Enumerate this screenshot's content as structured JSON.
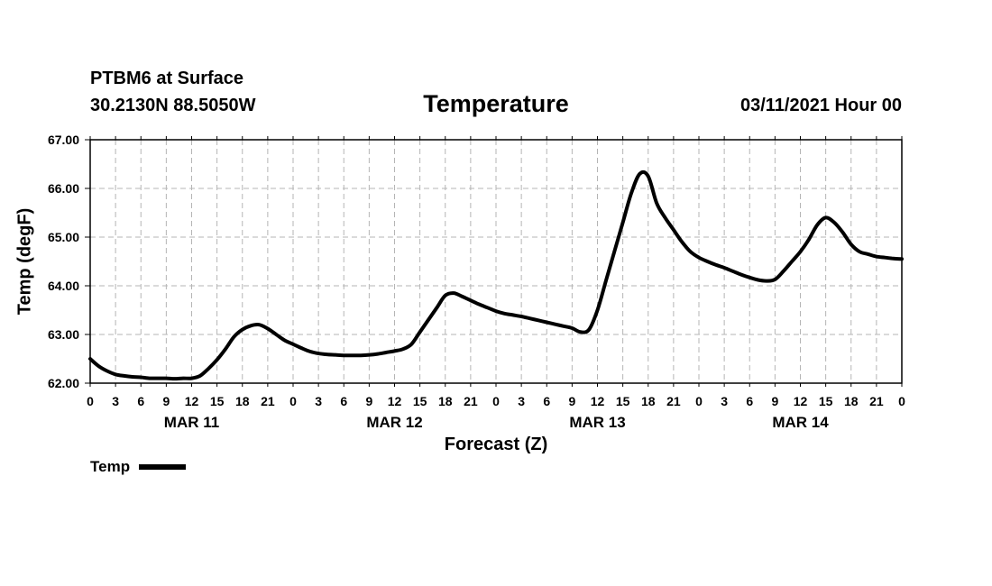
{
  "header": {
    "station": "PTBM6 at Surface",
    "coords": "30.2130N 88.5050W",
    "runtime": "03/11/2021 Hour 00"
  },
  "legend": {
    "label": "Temp"
  },
  "chart_data": {
    "type": "line",
    "title": "Temperature",
    "xlabel": "Forecast (Z)",
    "ylabel": "Temp (degF)",
    "ylim": [
      62.0,
      67.0
    ],
    "yticks": [
      "62.00",
      "63.00",
      "64.00",
      "65.00",
      "66.00",
      "67.00"
    ],
    "xlim": [
      0,
      96
    ],
    "xticks": [
      "0",
      "3",
      "6",
      "9",
      "12",
      "15",
      "18",
      "21",
      "0",
      "3",
      "6",
      "9",
      "12",
      "15",
      "18",
      "21",
      "0",
      "3",
      "6",
      "9",
      "12",
      "15",
      "18",
      "21",
      "0",
      "3",
      "6",
      "9",
      "12",
      "15",
      "18",
      "21",
      "0"
    ],
    "day_labels": [
      "MAR 11",
      "MAR 12",
      "MAR 13",
      "MAR 14"
    ],
    "grid": true,
    "legend_position": "bottom-left",
    "line_color": "#000000",
    "series": [
      {
        "name": "Temp",
        "x": [
          0,
          1,
          2,
          3,
          4,
          5,
          6,
          7,
          8,
          9,
          10,
          11,
          12,
          13,
          14,
          15,
          16,
          17,
          18,
          19,
          20,
          21,
          22,
          23,
          24,
          25,
          26,
          27,
          28,
          29,
          30,
          31,
          32,
          33,
          34,
          35,
          36,
          37,
          38,
          39,
          40,
          41,
          42,
          43,
          44,
          45,
          46,
          47,
          48,
          49,
          50,
          51,
          52,
          53,
          54,
          55,
          56,
          57,
          58,
          59,
          60,
          61,
          62,
          63,
          64,
          65,
          66,
          67,
          68,
          69,
          70,
          71,
          72,
          73,
          74,
          75,
          76,
          77,
          78,
          79,
          80,
          81,
          82,
          83,
          84,
          85,
          86,
          87,
          88,
          89,
          90,
          91,
          92,
          93,
          94,
          95,
          96
        ],
        "y": [
          62.5,
          62.35,
          62.25,
          62.18,
          62.15,
          62.13,
          62.12,
          62.1,
          62.1,
          62.1,
          62.09,
          62.1,
          62.1,
          62.15,
          62.3,
          62.48,
          62.7,
          62.95,
          63.1,
          63.18,
          63.2,
          63.12,
          63.0,
          62.88,
          62.8,
          62.72,
          62.65,
          62.61,
          62.59,
          62.58,
          62.57,
          62.57,
          62.57,
          62.58,
          62.6,
          62.63,
          62.66,
          62.7,
          62.8,
          63.05,
          63.3,
          63.55,
          63.8,
          63.85,
          63.78,
          63.7,
          63.62,
          63.55,
          63.48,
          63.43,
          63.4,
          63.37,
          63.33,
          63.29,
          63.25,
          63.21,
          63.17,
          63.13,
          63.05,
          63.1,
          63.5,
          64.1,
          64.7,
          65.3,
          65.9,
          66.3,
          66.25,
          65.7,
          65.4,
          65.15,
          64.9,
          64.7,
          64.58,
          64.5,
          64.43,
          64.37,
          64.3,
          64.23,
          64.17,
          64.12,
          64.1,
          64.13,
          64.3,
          64.5,
          64.7,
          64.95,
          65.25,
          65.4,
          65.3,
          65.1,
          64.85,
          64.7,
          64.65,
          64.6,
          64.58,
          64.56,
          64.55
        ]
      }
    ]
  }
}
